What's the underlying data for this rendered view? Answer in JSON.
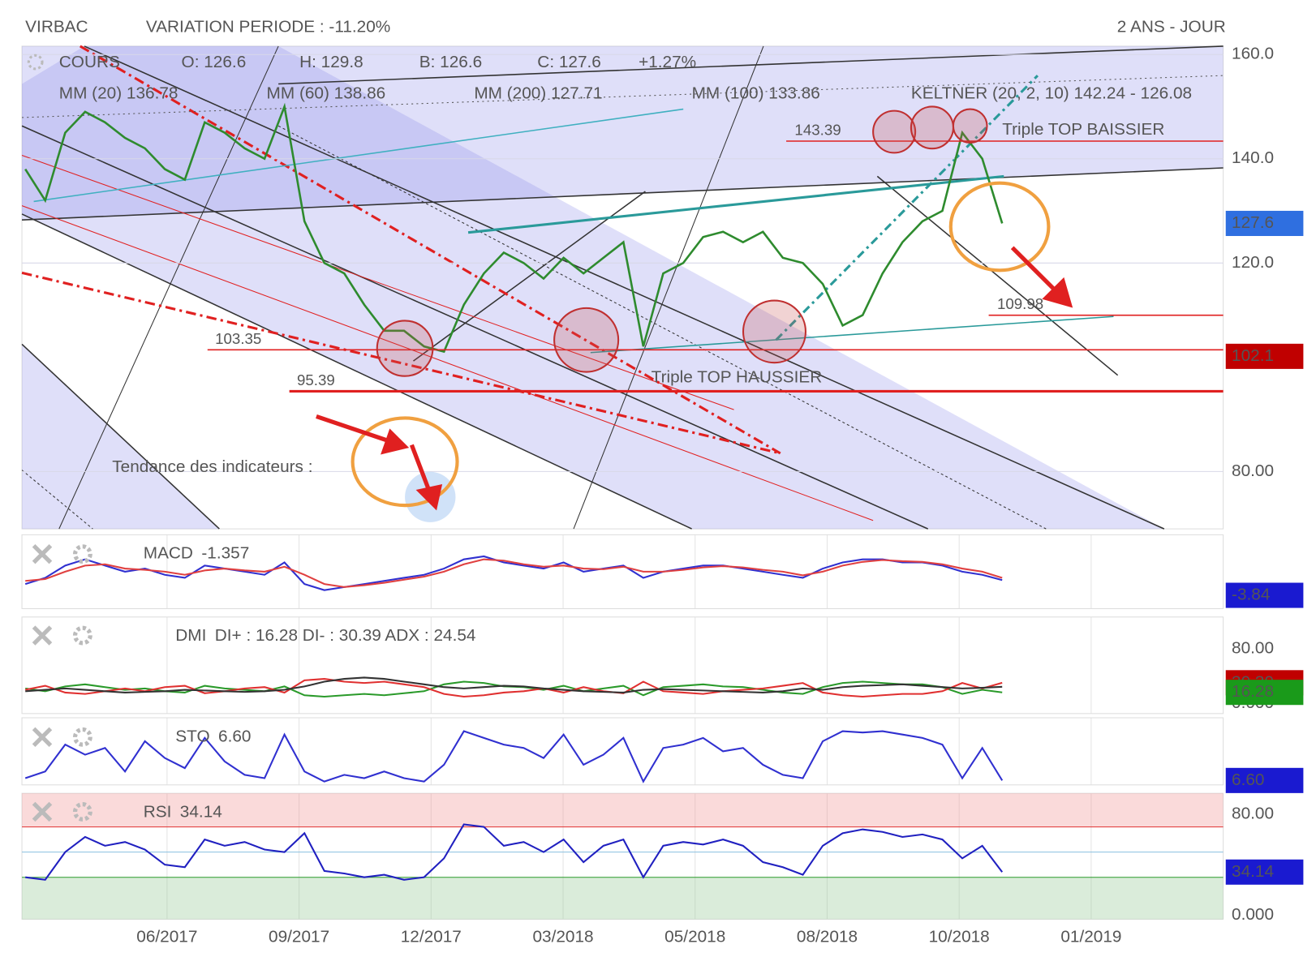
{
  "header": {
    "symbol": "VIRBAC",
    "variation": "VARIATION PERIODE : -11.20%",
    "period": "2 ANS - JOUR"
  },
  "x_axis": {
    "labels": [
      "06/2017",
      "09/2017",
      "12/2017",
      "03/2018",
      "05/2018",
      "08/2018",
      "10/2018",
      "01/2019"
    ]
  },
  "chart_data": [
    {
      "type": "line",
      "title": "COURS",
      "legend": [
        {
          "text": "O: 126.6",
          "color": "#555"
        },
        {
          "text": "H: 129.8",
          "color": "#555"
        },
        {
          "text": "B: 126.6",
          "color": "#555"
        },
        {
          "text": "C: 127.6",
          "color": "#555"
        },
        {
          "text": "+1.27%",
          "color": "#1a9a1a"
        },
        {
          "text": "MM (20) 136.78",
          "color": "#e02020"
        },
        {
          "text": "MM (60) 138.86",
          "color": "#f0a030"
        },
        {
          "text": "MM (200) 127.71",
          "color": "#2a9a8a"
        },
        {
          "text": "MM (100) 133.86",
          "color": "#40c0d0"
        },
        {
          "text": "KELTNER (20, 2, 10) 142.24 - 126.08",
          "color": "#1a8a1a"
        }
      ],
      "series": [
        {
          "color": "#2e8b2e",
          "values": [
            138,
            132,
            145,
            149,
            147,
            144,
            142,
            138,
            136,
            147,
            145,
            142,
            140,
            150,
            128,
            120,
            118,
            112,
            107,
            107,
            104,
            103,
            112,
            118,
            122,
            120,
            117,
            121,
            118,
            121,
            124,
            104,
            118,
            120,
            125,
            126,
            124,
            126,
            121,
            120,
            116,
            108,
            110,
            118,
            124,
            128,
            130,
            145,
            140,
            127.6
          ]
        }
      ],
      "ylim": [
        69,
        161.6
      ],
      "yticks": [
        {
          "value": 160,
          "label": "160.0"
        },
        {
          "value": 140,
          "label": "140.0"
        },
        {
          "value": 120,
          "label": "120.0"
        },
        {
          "value": 80,
          "label": "80.00"
        }
      ],
      "levels": [
        143.39,
        109.98,
        103.35,
        95.39
      ],
      "annotations": [
        "Triple TOP BAISSIER",
        "Triple TOP HAUSSIER",
        "Tendance des indicateurs :"
      ],
      "badges": [
        {
          "value": 127.6,
          "color": "#2f6fe0"
        },
        {
          "value": 102.1,
          "color": "#c00000"
        }
      ],
      "grid": true
    },
    {
      "type": "line",
      "title": "MACD",
      "value_text": "-1.357",
      "ylim": [
        -6,
        6
      ],
      "series": [
        {
          "color": "#3030d0",
          "values": [
            -2,
            -1,
            1,
            2,
            1,
            0,
            0.5,
            -0.5,
            -1,
            1,
            0.5,
            0,
            -0.5,
            1.5,
            -2,
            -3,
            -2.5,
            -2,
            -1.5,
            -1,
            -0.5,
            0.5,
            2,
            2.5,
            1.5,
            1,
            0.5,
            1.5,
            0,
            0.5,
            1,
            -1,
            0,
            0.5,
            1,
            1,
            0.5,
            0,
            -0.5,
            -1,
            0.5,
            1.5,
            2,
            2,
            1.5,
            1.5,
            1,
            0,
            -0.5,
            -1.357
          ]
        },
        {
          "color": "#e04040",
          "values": [
            -1.5,
            -1.2,
            0,
            1,
            1.2,
            0.5,
            0.3,
            0,
            -0.5,
            0.2,
            0.5,
            0.2,
            0,
            0.8,
            -0.5,
            -2,
            -2.5,
            -2.2,
            -1.8,
            -1.3,
            -0.8,
            0,
            1.2,
            2,
            1.8,
            1.2,
            0.8,
            1,
            0.5,
            0.4,
            0.8,
            0,
            0,
            0.3,
            0.7,
            0.9,
            0.7,
            0.3,
            0,
            -0.6,
            0,
            1,
            1.6,
            1.9,
            1.7,
            1.6,
            1.2,
            0.5,
            0,
            -1
          ]
        }
      ],
      "badges": [
        {
          "value": -3.84,
          "color": "#1a1ad0"
        }
      ]
    },
    {
      "type": "line",
      "title": "DMI",
      "value_text": "DI+ : 16.28 DI- : 30.39 ADX : 24.54",
      "ylim": [
        -14.8,
        126.8
      ],
      "yticks": [
        {
          "value": 80,
          "label": "80.00"
        },
        {
          "value": 0,
          "label": "0.000"
        }
      ],
      "series": [
        {
          "color": "#2a9a2a",
          "values": [
            22,
            18,
            25,
            28,
            24,
            20,
            22,
            18,
            16,
            26,
            22,
            20,
            18,
            25,
            12,
            10,
            12,
            14,
            12,
            15,
            18,
            28,
            32,
            30,
            25,
            24,
            20,
            26,
            18,
            22,
            26,
            12,
            24,
            26,
            28,
            25,
            24,
            20,
            16,
            14,
            24,
            30,
            32,
            30,
            28,
            28,
            24,
            14,
            20,
            16.28
          ]
        },
        {
          "color": "#e03030",
          "values": [
            20,
            26,
            16,
            14,
            18,
            22,
            18,
            24,
            26,
            15,
            18,
            22,
            24,
            16,
            34,
            36,
            32,
            30,
            32,
            28,
            24,
            14,
            10,
            12,
            16,
            18,
            22,
            16,
            24,
            18,
            15,
            32,
            18,
            16,
            14,
            18,
            20,
            22,
            26,
            30,
            16,
            12,
            10,
            12,
            14,
            14,
            18,
            30,
            22,
            30.39
          ]
        },
        {
          "color": "#333",
          "values": [
            18,
            20,
            22,
            20,
            18,
            16,
            17,
            18,
            20,
            19,
            18,
            17,
            18,
            20,
            25,
            32,
            36,
            38,
            36,
            32,
            28,
            24,
            22,
            24,
            26,
            25,
            22,
            20,
            18,
            17,
            16,
            20,
            21,
            20,
            19,
            18,
            17,
            16,
            18,
            22,
            20,
            24,
            26,
            27,
            28,
            26,
            24,
            22,
            23,
            24.54
          ]
        }
      ],
      "badges": [
        {
          "value": 30.39,
          "color": "#c00000"
        },
        {
          "value": 16.28,
          "color": "#1a9a1a"
        }
      ]
    },
    {
      "type": "line",
      "title": "STO",
      "value_text": "6.60",
      "ylim": [
        0,
        100
      ],
      "series": [
        {
          "color": "#3030d0",
          "values": [
            10,
            20,
            60,
            45,
            55,
            20,
            65,
            40,
            25,
            70,
            35,
            15,
            10,
            75,
            20,
            5,
            15,
            10,
            20,
            10,
            5,
            30,
            80,
            70,
            60,
            55,
            40,
            75,
            30,
            45,
            70,
            5,
            55,
            60,
            70,
            50,
            55,
            30,
            15,
            10,
            65,
            80,
            78,
            80,
            75,
            70,
            60,
            10,
            55,
            6.6
          ]
        }
      ],
      "badges": [
        {
          "value": 6.6,
          "label": "6.60",
          "color": "#1a1ad0"
        }
      ]
    },
    {
      "type": "line",
      "title": "RSI",
      "value_text": "34.14",
      "ylim": [
        -3.3,
        96.7
      ],
      "yticks": [
        {
          "value": 80,
          "label": "80.00"
        },
        {
          "value": 0,
          "label": "0.000"
        }
      ],
      "levels": [
        70,
        50,
        30
      ],
      "series": [
        {
          "color": "#2020c0",
          "values": [
            30,
            28,
            50,
            62,
            55,
            58,
            52,
            40,
            38,
            60,
            55,
            58,
            52,
            50,
            65,
            35,
            33,
            30,
            32,
            28,
            30,
            45,
            72,
            70,
            55,
            58,
            50,
            60,
            42,
            55,
            60,
            30,
            55,
            58,
            56,
            60,
            55,
            42,
            38,
            32,
            55,
            65,
            68,
            66,
            62,
            64,
            60,
            45,
            55,
            34.14
          ]
        }
      ],
      "badges": [
        {
          "value": 34.14,
          "color": "#1a1ad0"
        }
      ]
    }
  ]
}
